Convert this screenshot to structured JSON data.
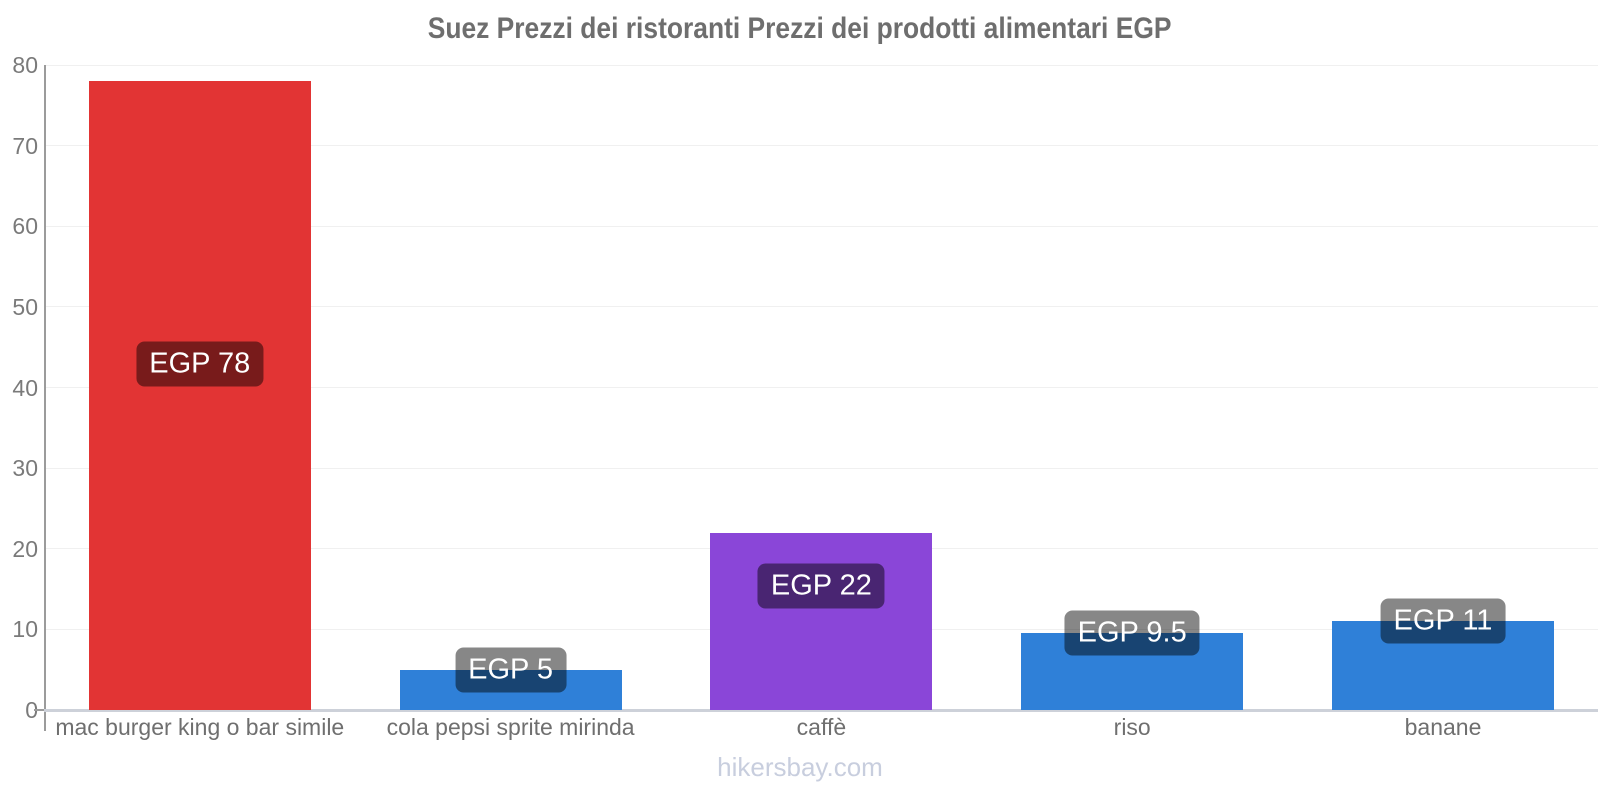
{
  "title": "Suez Prezzi dei ristoranti Prezzi dei prodotti alimentari EGP",
  "watermark": "hikersbay.com",
  "chart_data": {
    "type": "bar",
    "title": "Suez Prezzi dei ristoranti Prezzi dei prodotti alimentari EGP",
    "currency": "EGP",
    "categories": [
      "mac burger king o bar simile",
      "cola pepsi sprite mirinda",
      "caffè",
      "riso",
      "banane"
    ],
    "values": [
      78,
      5,
      22,
      9.5,
      11
    ],
    "bar_labels": [
      "EGP 78",
      "EGP 5",
      "EGP 22",
      "EGP 9.5",
      "EGP 11"
    ],
    "bar_colors": [
      "#e23434",
      "#2f80d8",
      "#8a46d8",
      "#2f80d8",
      "#2f80d8"
    ],
    "badge_bg": "rgba(0,0,0,0.47)",
    "ylim": [
      0,
      80
    ],
    "yticks": [
      0,
      10,
      20,
      30,
      40,
      50,
      60,
      70,
      80
    ],
    "grid": true,
    "legend": false,
    "xlabel": "",
    "ylabel": "",
    "colors": {
      "axis": "#9b9b9b",
      "grid": "#f0f0f0",
      "baseline": "#cdd1d9",
      "tick_label": "#7a7a7a",
      "category_label": "#6f6f6f",
      "title": "#6e6e6e",
      "watermark": "#c8cede"
    }
  }
}
